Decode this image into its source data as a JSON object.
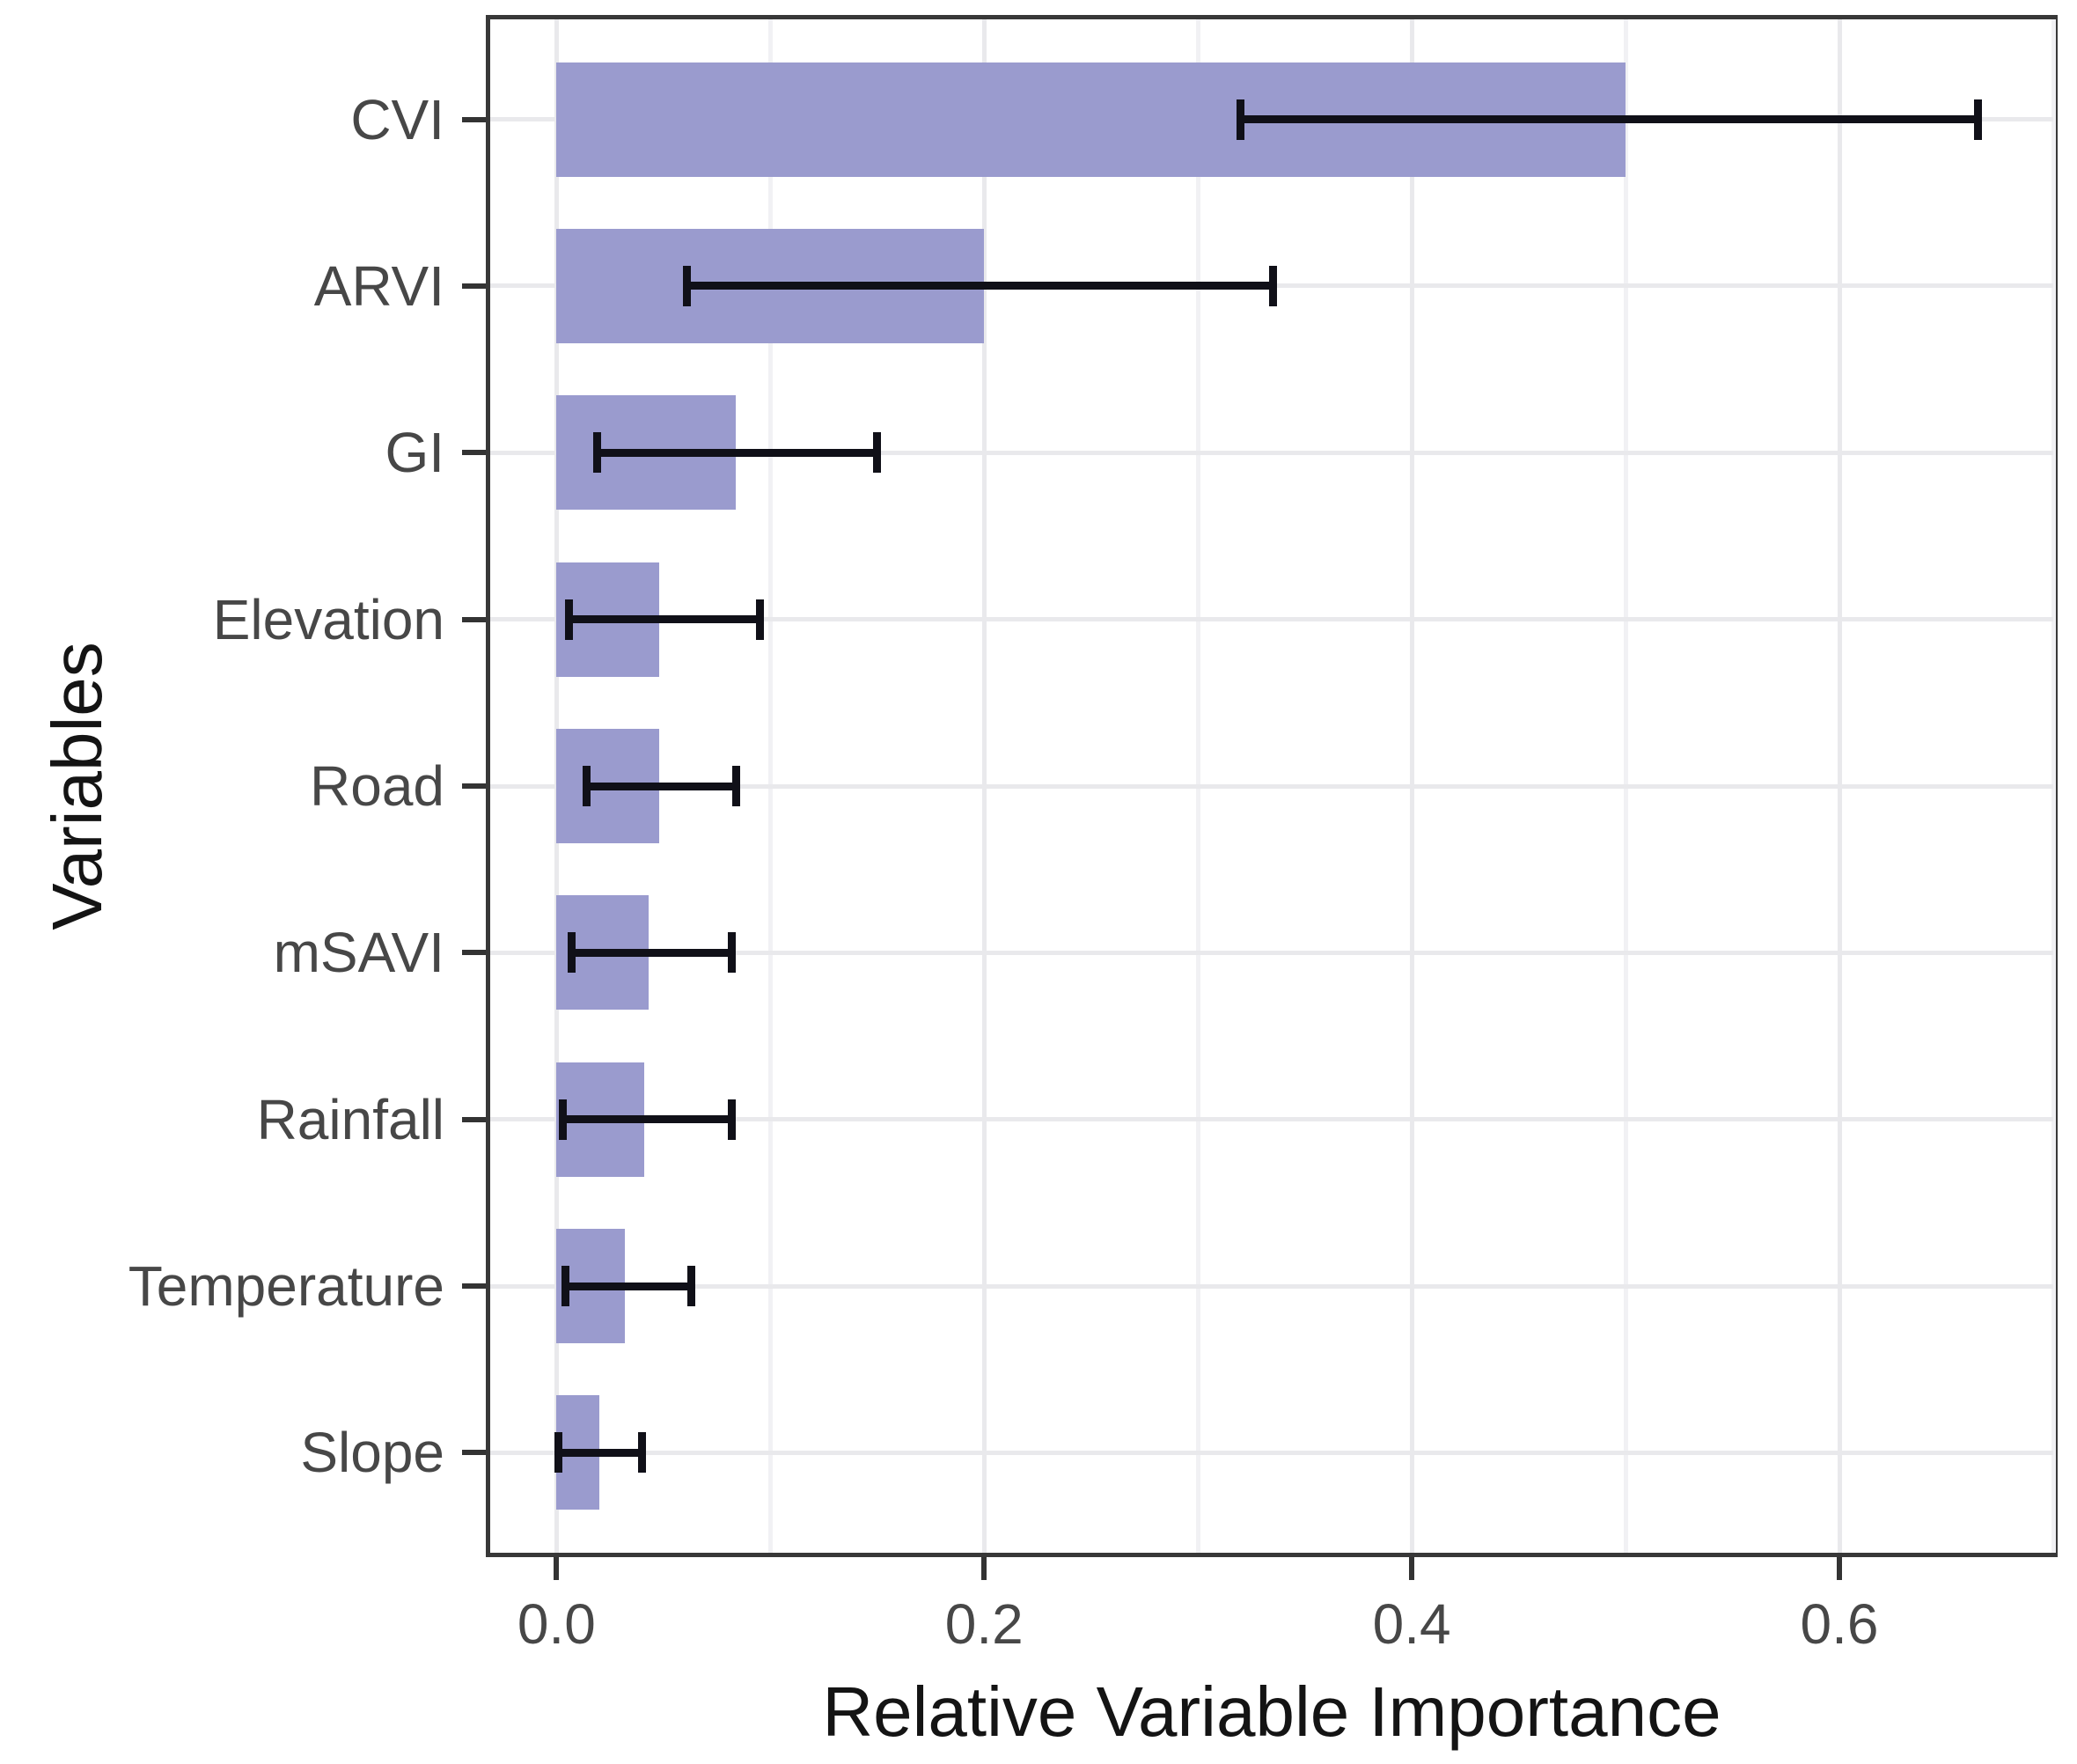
{
  "figure": {
    "background_color": "#ffffff",
    "panel_border_color": "#383838",
    "grid_major_color": "#e9e9ec",
    "grid_minor_color": "#f1f1f4",
    "bar_fill_color": "#9a9bce",
    "error_bar_color": "#101018",
    "axis_text_color": "#474747",
    "axis_title_color": "#141414"
  },
  "chart_data": {
    "type": "bar",
    "orientation": "horizontal",
    "title": "",
    "xlabel": "Relative Variable Importance",
    "ylabel": "Variables",
    "categories": [
      "CVI",
      "ARVI",
      "GI",
      "Elevation",
      "Road",
      "mSAVI",
      "Rainfall",
      "Temperature",
      "Slope"
    ],
    "values": [
      0.5,
      0.2,
      0.084,
      0.048,
      0.048,
      0.043,
      0.041,
      0.032,
      0.02
    ],
    "error_low": [
      0.32,
      0.061,
      0.019,
      0.006,
      0.014,
      0.007,
      0.003,
      0.004,
      0.001
    ],
    "error_high": [
      0.665,
      0.335,
      0.15,
      0.095,
      0.084,
      0.082,
      0.082,
      0.063,
      0.04
    ],
    "xlim": [
      -0.031,
      0.7
    ],
    "x_major_ticks": [
      0.0,
      0.2,
      0.4,
      0.6
    ],
    "x_tick_labels": [
      "0.0",
      "0.2",
      "0.4",
      "0.6"
    ],
    "x_minor_ticks": [
      0.1,
      0.3,
      0.5,
      0.7
    ],
    "bar_start": 0.0,
    "grid": true,
    "legend": false
  }
}
